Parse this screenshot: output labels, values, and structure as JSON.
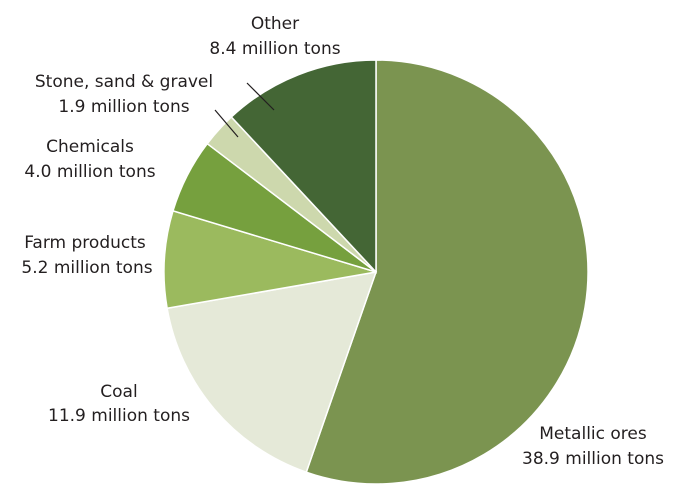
{
  "chart_data": {
    "type": "pie",
    "title": "",
    "start_angle_deg": 0,
    "direction": "clockwise",
    "slices": [
      {
        "label": "Metallic ores",
        "value_text": "38.9 million tons",
        "value": 38.9,
        "color": "#7b9450"
      },
      {
        "label": "Coal",
        "value_text": "11.9 million tons",
        "value": 11.9,
        "color": "#e5e9d8"
      },
      {
        "label": "Farm products",
        "value_text": "5.2 million tons",
        "value": 5.2,
        "color": "#9bba5e"
      },
      {
        "label": "Chemicals",
        "value_text": "4.0 million tons",
        "value": 4.0,
        "color": "#76a03e"
      },
      {
        "label": "Stone, sand & gravel",
        "value_text": "1.9 million tons",
        "value": 1.9,
        "color": "#cdd8ad"
      },
      {
        "label": "Other",
        "value_text": "8.4 million tons",
        "value": 8.4,
        "color": "#446635"
      }
    ]
  }
}
